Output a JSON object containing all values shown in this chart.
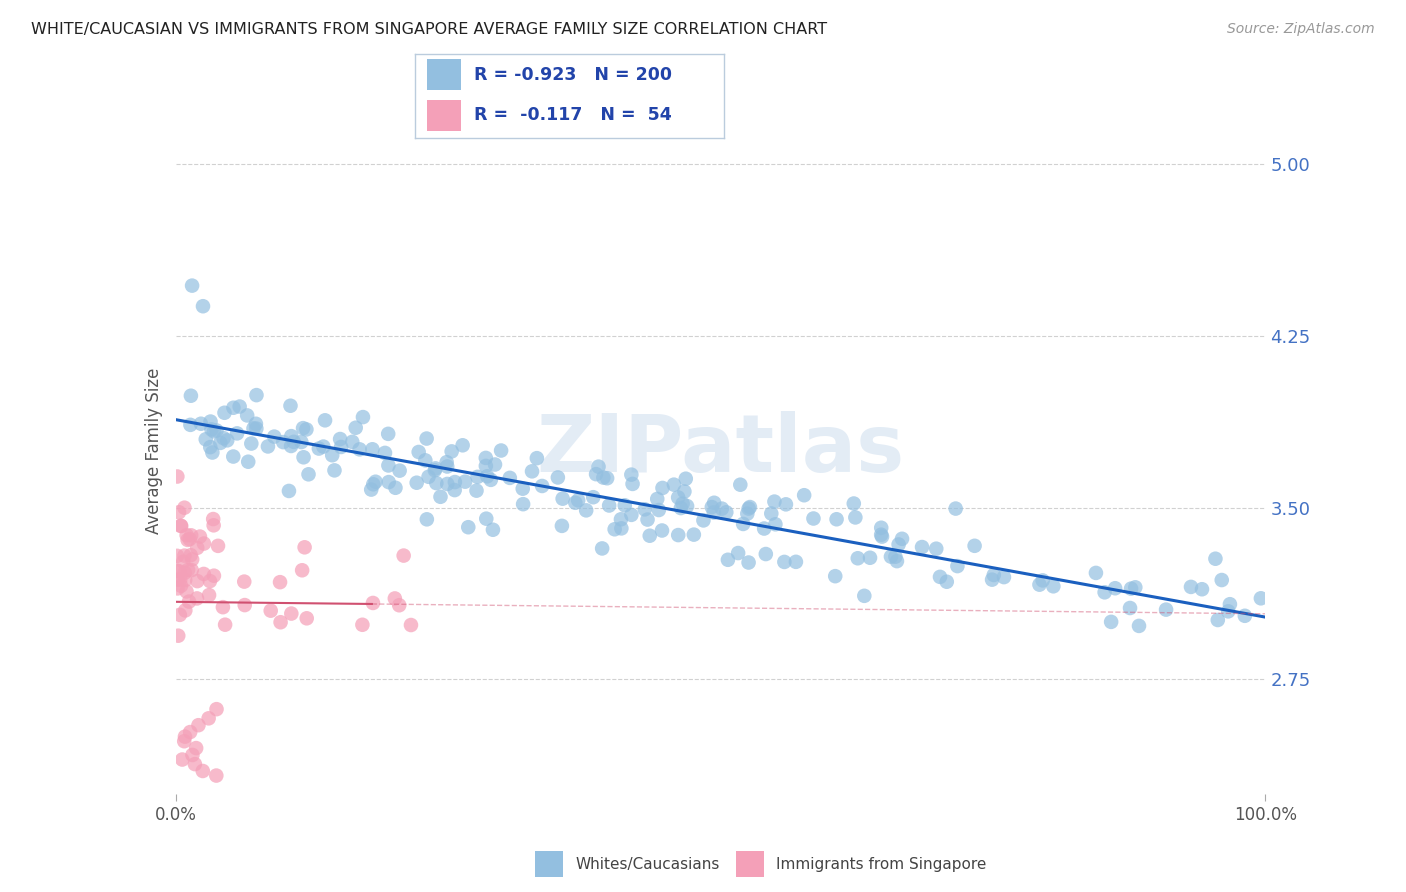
{
  "title": "WHITE/CAUCASIAN VS IMMIGRANTS FROM SINGAPORE AVERAGE FAMILY SIZE CORRELATION CHART",
  "source": "Source: ZipAtlas.com",
  "ylabel": "Average Family Size",
  "ylim": [
    2.25,
    5.25
  ],
  "xlim": [
    0.0,
    100.0
  ],
  "yticks": [
    2.75,
    3.5,
    4.25,
    5.0
  ],
  "ytick_labels": [
    "2.75",
    "3.50",
    "4.25",
    "5.00"
  ],
  "legend_blue_R": "-0.923",
  "legend_blue_N": "200",
  "legend_pink_R": "-0.117",
  "legend_pink_N": "54",
  "blue_color": "#93bfe0",
  "pink_color": "#f4a0b8",
  "blue_line_color": "#1a5fbf",
  "pink_line_color": "#d05070",
  "watermark": "ZIPatlas",
  "background_color": "#ffffff",
  "grid_color": "#cccccc",
  "title_color": "#222222",
  "axis_label_color": "#555555",
  "right_tick_color": "#4472c4",
  "legend_R_color": "#2244aa"
}
